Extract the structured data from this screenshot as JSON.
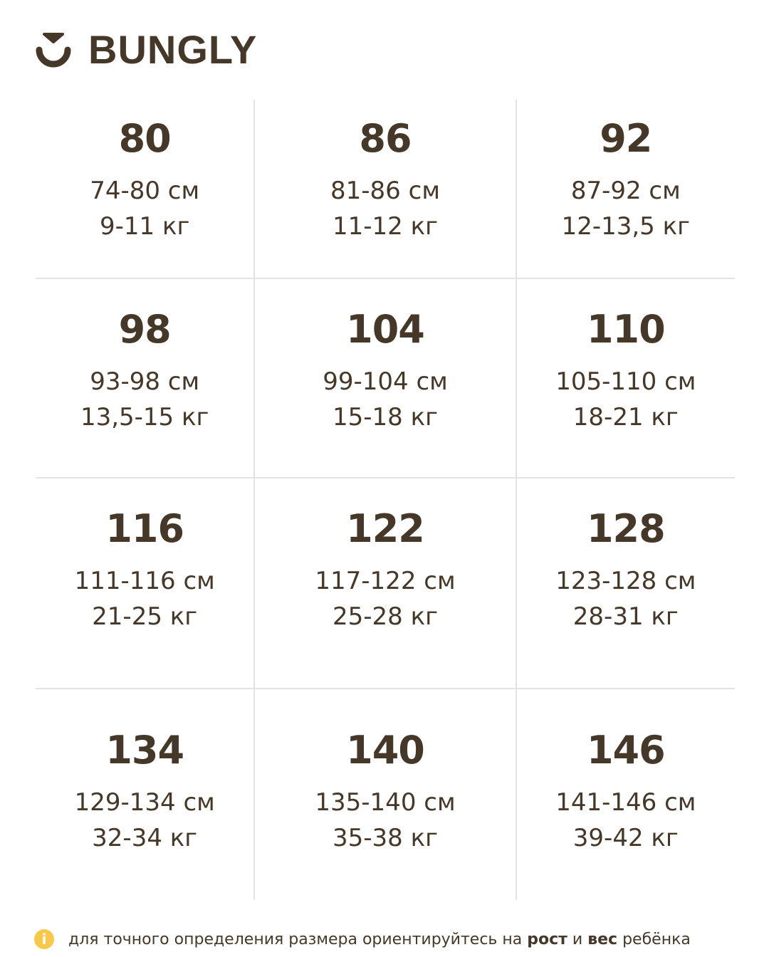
{
  "brand": {
    "name": "BUNGLY",
    "color": "#463828",
    "accent": "#f8c84a"
  },
  "sizes": [
    [
      {
        "size": "80",
        "height": "74-80 см",
        "weight": "9-11 кг"
      },
      {
        "size": "86",
        "height": "81-86 см",
        "weight": "11-12 кг"
      },
      {
        "size": "92",
        "height": "87-92 см",
        "weight": "12-13,5 кг"
      }
    ],
    [
      {
        "size": "98",
        "height": "93-98 см",
        "weight": "13,5-15 кг"
      },
      {
        "size": "104",
        "height": "99-104 см",
        "weight": "15-18 кг"
      },
      {
        "size": "110",
        "height": "105-110 см",
        "weight": "18-21 кг"
      }
    ],
    [
      {
        "size": "116",
        "height": "111-116 см",
        "weight": "21-25 кг"
      },
      {
        "size": "122",
        "height": "117-122 см",
        "weight": "25-28 кг"
      },
      {
        "size": "128",
        "height": "123-128 см",
        "weight": "28-31 кг"
      }
    ],
    [
      {
        "size": "134",
        "height": "129-134 см",
        "weight": "32-34 кг"
      },
      {
        "size": "140",
        "height": "135-140 см",
        "weight": "35-38 кг"
      },
      {
        "size": "146",
        "height": "141-146 см",
        "weight": "39-42 кг"
      }
    ]
  ],
  "footer": {
    "icon": "info-icon",
    "icon_glyph": "i",
    "text1": "для точного определения размера ориентируйтесь на ",
    "bold1": "рост",
    "text2": " и ",
    "bold2": "вес",
    "text3": " ребёнка"
  }
}
